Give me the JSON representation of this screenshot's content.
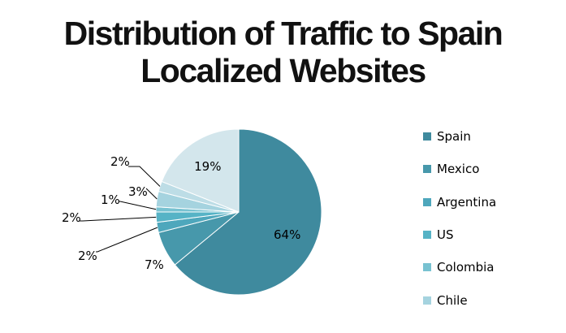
{
  "chart_data": {
    "type": "pie",
    "title_lines": [
      "Distribution of Traffic to Spain",
      "Localized Websites"
    ],
    "slices": [
      {
        "label": "Spain",
        "value": 64,
        "display": "64%",
        "color": "#3f8a9e"
      },
      {
        "label": "Mexico",
        "value": 7,
        "display": "7%",
        "color": "#4798ab"
      },
      {
        "label": "Argentina",
        "value": 2,
        "display": "2%",
        "color": "#4ea7bc"
      },
      {
        "label": "US",
        "value": 2,
        "display": "2%",
        "color": "#56b3c6"
      },
      {
        "label": "Colombia",
        "value": 1,
        "display": "1%",
        "color": "#78c2d1"
      },
      {
        "label": "Chile",
        "value": 3,
        "display": "3%",
        "color": "#a5d3df"
      },
      {
        "label": "",
        "value": 2,
        "display": "2%",
        "color": "#bddde6"
      },
      {
        "label": "",
        "value": 19,
        "display": "19%",
        "color": "#d3e6ec"
      }
    ],
    "legend_placement": "right"
  }
}
